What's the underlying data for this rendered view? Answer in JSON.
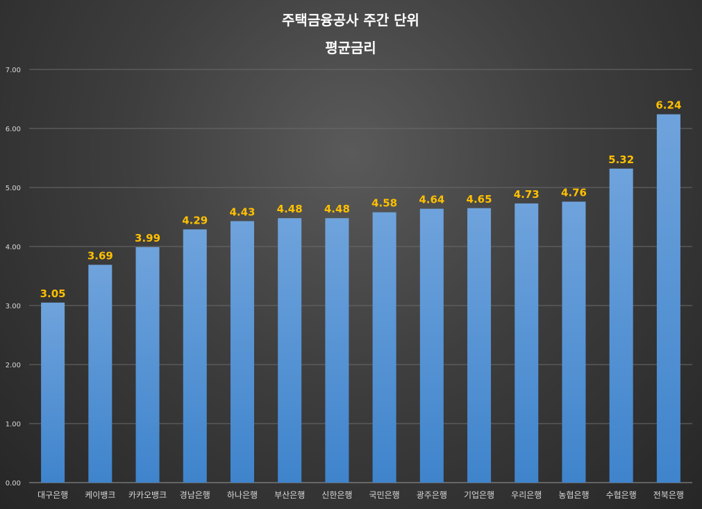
{
  "chart_data": {
    "type": "bar",
    "title_lines": [
      "주택금융공사 주간 단위",
      "평균금리"
    ],
    "categories": [
      "대구은행",
      "케이뱅크",
      "카카오뱅크",
      "경남은행",
      "하나은행",
      "부산은행",
      "신한은행",
      "국민은행",
      "광주은행",
      "기업은행",
      "우리은행",
      "농협은행",
      "수협은행",
      "전북은행"
    ],
    "values": [
      3.05,
      3.69,
      3.99,
      4.29,
      4.43,
      4.48,
      4.48,
      4.58,
      4.64,
      4.65,
      4.73,
      4.76,
      5.32,
      6.24
    ],
    "data_labels": [
      "3.05",
      "3.69",
      "3.99",
      "4.29",
      "4.43",
      "4.48",
      "4.48",
      "4.58",
      "4.64",
      "4.65",
      "4.73",
      "4.76",
      "5.32",
      "6.24"
    ],
    "yticks": [
      "0.00",
      "1.00",
      "2.00",
      "3.00",
      "4.00",
      "5.00",
      "6.00",
      "7.00"
    ],
    "ylim": [
      0,
      7
    ],
    "grid": true,
    "legend": "none",
    "colors": {
      "bar_top": "#6fa3dc",
      "bar_bottom": "#3f84cc",
      "data_label": "#ffc000",
      "text": "#d9d9d9",
      "title": "#ffffff"
    }
  }
}
